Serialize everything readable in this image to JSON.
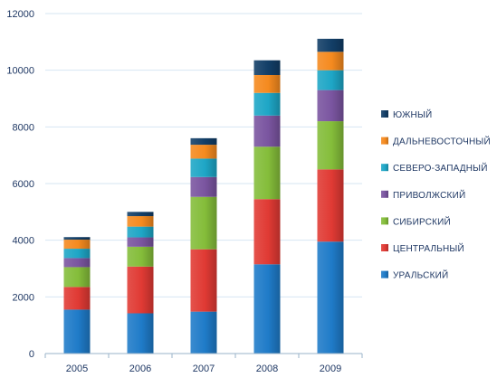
{
  "chart_data": {
    "type": "bar",
    "stacked": true,
    "title": "",
    "xlabel": "",
    "ylabel": "",
    "categories": [
      "2005",
      "2006",
      "2007",
      "2008",
      "2009"
    ],
    "ylim": [
      0,
      12000
    ],
    "yticks": [
      0,
      2000,
      4000,
      6000,
      8000,
      10000,
      12000
    ],
    "grid": true,
    "legend_position": "right",
    "series": [
      {
        "name": "УРАЛЬСКИЙ",
        "color": "#1f7bc8",
        "values": [
          1550,
          1420,
          1480,
          3150,
          3950
        ]
      },
      {
        "name": "ЦЕНТРАЛЬНЫЙ",
        "color": "#e03a34",
        "values": [
          800,
          1650,
          2200,
          2300,
          2550
        ]
      },
      {
        "name": "СИБИРСКИЙ",
        "color": "#84bd3a",
        "values": [
          700,
          700,
          1850,
          1850,
          1700
        ]
      },
      {
        "name": "ПРИВОЛЖСКИЙ",
        "color": "#7a55a0",
        "values": [
          320,
          330,
          700,
          1100,
          1100
        ]
      },
      {
        "name": "СЕВЕРО-ЗАПАДНЫЙ",
        "color": "#1ea6c6",
        "values": [
          330,
          380,
          650,
          800,
          700
        ]
      },
      {
        "name": "ДАЛЬНЕВОСТОЧНЫЙ",
        "color": "#f58a1f",
        "values": [
          320,
          370,
          490,
          630,
          650
        ]
      },
      {
        "name": "ЮЖНЫЙ",
        "color": "#123e67",
        "values": [
          90,
          150,
          230,
          520,
          460
        ]
      }
    ]
  }
}
